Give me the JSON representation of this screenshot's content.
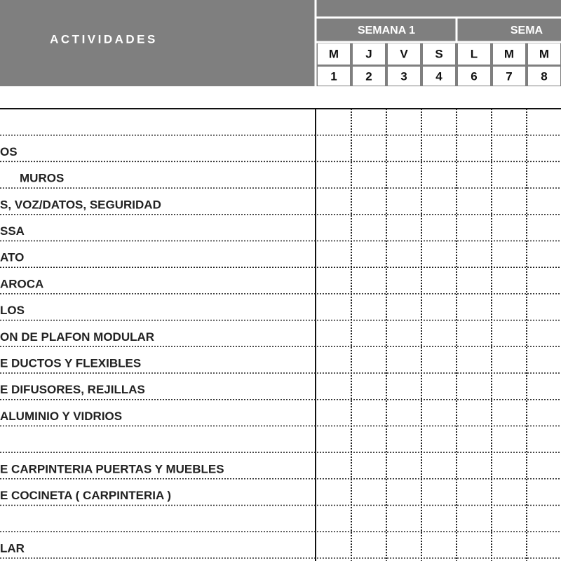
{
  "header": {
    "activities": "ACTIVIDADES",
    "weeks": [
      "SEMANA 1",
      "SEMA"
    ],
    "days": [
      "M",
      "J",
      "V",
      "S",
      "L",
      "M",
      "M"
    ],
    "dates": [
      "1",
      "2",
      "3",
      "4",
      "6",
      "7",
      "8"
    ]
  },
  "rows": [
    null,
    "OS",
    "MUROS",
    "S, VOZ/DATOS, SEGURIDAD",
    "SSA",
    "ATO",
    "AROCA",
    "LOS",
    "ON DE PLAFON MODULAR",
    "E DUCTOS  Y FLEXIBLES",
    "E DIFUSORES, REJILLAS",
    "ALUMINIO Y VIDRIOS",
    null,
    "E CARPINTERIA  PUERTAS  Y MUEBLES",
    "E COCINETA ( CARPINTERIA )",
    null,
    "LAR"
  ]
}
